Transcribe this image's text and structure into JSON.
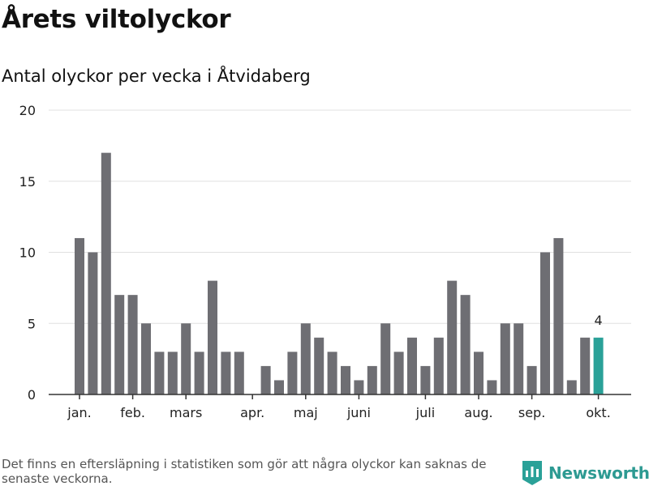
{
  "title": "Årets viltolyckor",
  "subtitle": "Antal olyckor per vecka i Åtvidaberg",
  "footnote": "Det finns en eftersläpning i statistiken som gör att några olyckor kan saknas de senaste veckorna.",
  "brand": {
    "name": "Newsworthy",
    "icon": "newsworthy-logo-icon"
  },
  "colors": {
    "bar": "#6e6e73",
    "highlight": "#2aa198",
    "grid": "#e0e0e0",
    "axis": "#333333"
  },
  "chart_data": {
    "type": "bar",
    "title": "Antal olyckor per vecka i Åtvidaberg",
    "xlabel": "",
    "ylabel": "",
    "ylim": [
      0,
      20
    ],
    "y_ticks": [
      0,
      5,
      10,
      15,
      20
    ],
    "weeks": [
      1,
      2,
      3,
      4,
      5,
      6,
      7,
      8,
      9,
      10,
      11,
      12,
      13,
      14,
      15,
      16,
      17,
      18,
      19,
      20,
      21,
      22,
      23,
      24,
      25,
      26,
      27,
      28,
      29,
      30,
      31,
      32,
      33,
      34,
      35,
      36,
      37,
      38,
      39,
      40
    ],
    "values": [
      11,
      10,
      17,
      7,
      7,
      5,
      3,
      3,
      5,
      3,
      8,
      3,
      3,
      0,
      2,
      1,
      3,
      5,
      4,
      3,
      2,
      1,
      2,
      5,
      3,
      4,
      2,
      4,
      8,
      7,
      3,
      1,
      5,
      5,
      2,
      10,
      11,
      1,
      4,
      4
    ],
    "highlight_index": 39,
    "data_labels": [
      {
        "index": 39,
        "text": "4"
      }
    ],
    "month_labels": [
      {
        "label": "jan.",
        "week": 1
      },
      {
        "label": "feb.",
        "week": 5
      },
      {
        "label": "mars",
        "week": 9
      },
      {
        "label": "apr.",
        "week": 14
      },
      {
        "label": "maj",
        "week": 18
      },
      {
        "label": "juni",
        "week": 22
      },
      {
        "label": "juli",
        "week": 27
      },
      {
        "label": "aug.",
        "week": 31
      },
      {
        "label": "sep.",
        "week": 35
      },
      {
        "label": "okt.",
        "week": 40
      }
    ]
  }
}
